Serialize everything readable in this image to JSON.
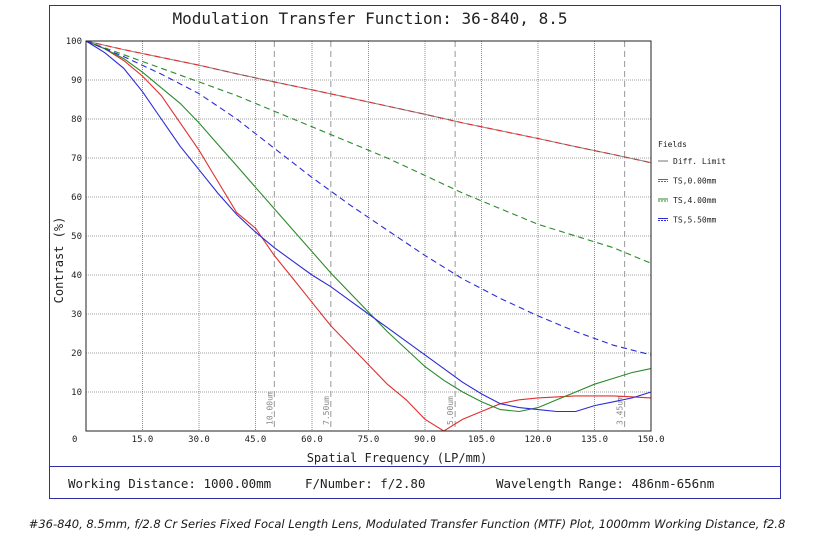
{
  "chart_data": {
    "type": "line",
    "title": "Modulation Transfer Function: 36-840, 8.5",
    "xlabel": "Spatial Frequency (LP/mm)",
    "ylabel": "Contrast (%)",
    "xlim": [
      0,
      150
    ],
    "ylim": [
      0,
      100
    ],
    "x_ticks": [
      "0",
      "15.0",
      "30.0",
      "45.0",
      "60.0",
      "75.0",
      "90.0",
      "105.0",
      "120.0",
      "135.0",
      "150.0"
    ],
    "y_ticks": [
      "10",
      "20",
      "30",
      "40",
      "50",
      "60",
      "70",
      "80",
      "90",
      "100"
    ],
    "grid": true,
    "legend_title": "Fields",
    "legend_position": "right",
    "vertical_markers": [
      {
        "x": 50,
        "label": "10.00um"
      },
      {
        "x": 65,
        "label": "7.50um"
      },
      {
        "x": 98,
        "label": "5.00um"
      },
      {
        "x": 143,
        "label": "3.45um"
      }
    ],
    "series": [
      {
        "name": "Diff. Limit",
        "color": "#8c8c8c",
        "style": "solid",
        "x": [
          0,
          10,
          20,
          30,
          40,
          50,
          60,
          70,
          80,
          90,
          100,
          110,
          120,
          130,
          140,
          150
        ],
        "y": [
          100,
          97.8,
          95.8,
          93.8,
          91.6,
          89.5,
          87.5,
          85.4,
          83.3,
          81.2,
          79,
          77,
          75,
          72.9,
          70.9,
          68.8
        ]
      },
      {
        "name": "TS,0.00mm",
        "color": "#e03030",
        "style": "solid",
        "x": [
          0,
          5,
          10,
          15,
          20,
          25,
          30,
          35,
          40,
          45,
          50,
          55,
          60,
          65,
          70,
          75,
          80,
          85,
          90,
          95,
          100,
          105,
          110,
          115,
          120,
          130,
          140,
          150
        ],
        "y": [
          100,
          98,
          95,
          91,
          86,
          79,
          72,
          64,
          56,
          52,
          45,
          39,
          33,
          27,
          22,
          17,
          12,
          8,
          3,
          0,
          3,
          5,
          7,
          8,
          8.5,
          9,
          9,
          8.5
        ]
      },
      {
        "name": "TS,0.00mm",
        "color": "#e03030",
        "style": "dashed",
        "x": [
          0,
          10,
          20,
          30,
          40,
          50,
          60,
          70,
          80,
          90,
          100,
          110,
          120,
          130,
          140,
          150
        ],
        "y": [
          100,
          97.8,
          95.8,
          93.8,
          91.6,
          89.5,
          87.5,
          85.4,
          83.3,
          81.2,
          79,
          77,
          75,
          72.9,
          70.9,
          68.8
        ]
      },
      {
        "name": "TS,4.00mm",
        "color": "#2c8a2c",
        "style": "solid",
        "x": [
          0,
          5,
          10,
          15,
          20,
          25,
          30,
          35,
          40,
          45,
          50,
          55,
          60,
          65,
          70,
          75,
          80,
          85,
          90,
          95,
          100,
          105,
          110,
          115,
          120,
          125,
          130,
          135,
          140,
          145,
          150
        ],
        "y": [
          100,
          98,
          95.5,
          92,
          88,
          84,
          79,
          73.5,
          68,
          62.5,
          57,
          51.5,
          46,
          40.5,
          35.5,
          30.5,
          25.5,
          21,
          16.5,
          13,
          10,
          7.5,
          5.5,
          5,
          6,
          8,
          10,
          12,
          13.5,
          15,
          16
        ]
      },
      {
        "name": "TS,4.00mm",
        "color": "#2c8a2c",
        "style": "dashed",
        "x": [
          0,
          10,
          20,
          30,
          40,
          50,
          60,
          70,
          80,
          90,
          100,
          110,
          120,
          130,
          140,
          150
        ],
        "y": [
          100,
          96.5,
          93,
          89.5,
          86,
          82,
          78,
          74,
          70,
          65.5,
          61,
          57,
          53,
          50,
          47,
          43
        ]
      },
      {
        "name": "TS,5.50mm",
        "color": "#2b2bd6",
        "style": "solid",
        "x": [
          0,
          5,
          10,
          15,
          20,
          25,
          30,
          35,
          40,
          45,
          50,
          55,
          60,
          65,
          70,
          75,
          80,
          85,
          90,
          95,
          100,
          105,
          110,
          115,
          120,
          125,
          130,
          135,
          140,
          145,
          150
        ],
        "y": [
          100,
          97,
          93,
          87,
          80,
          73,
          67,
          61,
          55.5,
          51,
          47,
          43.5,
          40,
          37,
          33.5,
          30,
          26.5,
          23,
          19.5,
          16,
          12.5,
          9.5,
          7,
          6,
          5.5,
          5,
          5,
          6.5,
          7.5,
          8.5,
          10
        ]
      },
      {
        "name": "TS,5.50mm",
        "color": "#2b2bd6",
        "style": "dashed",
        "x": [
          0,
          10,
          20,
          30,
          40,
          50,
          60,
          70,
          80,
          90,
          100,
          110,
          120,
          130,
          140,
          150
        ],
        "y": [
          100,
          96,
          91.5,
          86.5,
          80,
          72.5,
          65,
          58,
          51.5,
          45,
          39,
          34,
          29.5,
          25.5,
          22,
          19.5
        ]
      }
    ]
  },
  "legend": [
    {
      "label": "Diff. Limit",
      "color": "#8c8c8c",
      "double": false
    },
    {
      "label": "TS,0.00mm",
      "color": "#e03030",
      "double": true
    },
    {
      "label": "TS,4.00mm",
      "color": "#2c8a2c",
      "double": true
    },
    {
      "label": "TS,5.50mm",
      "color": "#2b2bd6",
      "double": true
    }
  ],
  "footer": {
    "working_distance": "Working Distance: 1000.00mm",
    "f_number": "F/Number: f/2.80",
    "wavelength": "Wavelength Range: 486nm-656nm"
  },
  "caption": "#36-840, 8.5mm, f/2.8 Cr Series Fixed Focal Length Lens, Modulated Transfer Function (MTF) Plot, 1000mm Working Distance, f2.8"
}
